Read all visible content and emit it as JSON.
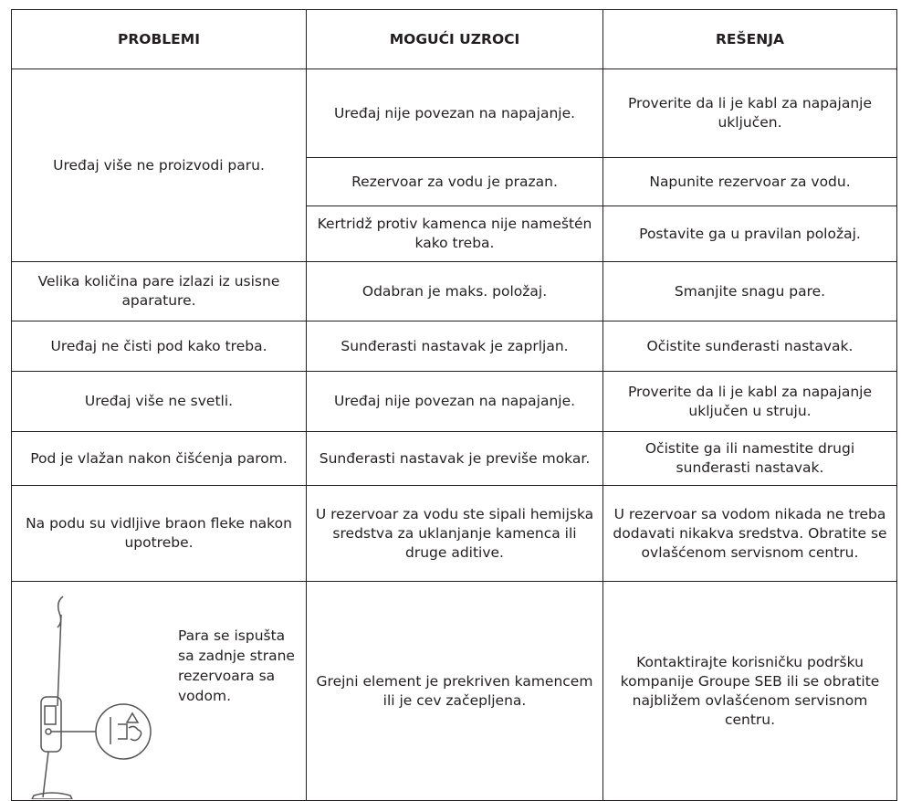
{
  "table": {
    "header": [
      "PROBLEMI",
      "MOGUĆI UZROCI",
      "REŠENJA"
    ],
    "rows": [
      {
        "problem": "Uređaj više ne proizvodi paru.",
        "causes": [
          {
            "cause": "Uređaj nije povezan na napajanje.",
            "solution": "Proverite da li je kabl za napajanje uključen."
          },
          {
            "cause": "Rezervoar za vodu je prazan.",
            "solution": "Napunite rezervoar za vodu."
          },
          {
            "cause": "Kertridž protiv kamenca nije nameštén kako treba.",
            "solution": "Postavite ga u pravilan položaj."
          }
        ]
      },
      {
        "problem": "Velika količina pare izlazi iz usisne aparature.",
        "causes": [
          {
            "cause": "Odabran je maks. položaj.",
            "solution": "Smanjite snagu pare."
          }
        ]
      },
      {
        "problem": "Uređaj ne čisti pod kako treba.",
        "causes": [
          {
            "cause": "Sunđerasti nastavak je zaprljan.",
            "solution": "Očistite sunđerasti nastavak."
          }
        ]
      },
      {
        "problem": "Uređaj više ne svetli.",
        "causes": [
          {
            "cause": "Uređaj nije povezan na napajanje.",
            "solution": "Proverite da li je kabl za napajanje uključen u struju."
          }
        ]
      },
      {
        "problem": "Pod je vlažan nakon čišćenja parom.",
        "causes": [
          {
            "cause": "Sunđerasti nastavak je previše mokar.",
            "solution": "Očistite ga ili namestite drugi sunđerasti nastavak."
          }
        ]
      },
      {
        "problem": "Na podu su vidljive braon fleke nakon upotrebe.",
        "causes": [
          {
            "cause": "U rezervoar za vodu ste sipali hemijska sredstva za uklanjanje kamenca ili druge aditive.",
            "solution": "U rezervoar sa vodom nikada ne treba dodavati nikakva sredstva. Obratite se ovlašćenom servisnom centru."
          }
        ]
      },
      {
        "problem": "Para se ispušta sa zadnje strane rezervoara sa vodom.",
        "causes": [
          {
            "cause": "Grejni element je prekriven kamencem ili je cev začepljena.",
            "solution": "Kontaktirajte korisničku podršku kompanije Groupe SEB ili se obratite najbližem ovlašćenom servisnom centru."
          }
        ]
      }
    ]
  }
}
